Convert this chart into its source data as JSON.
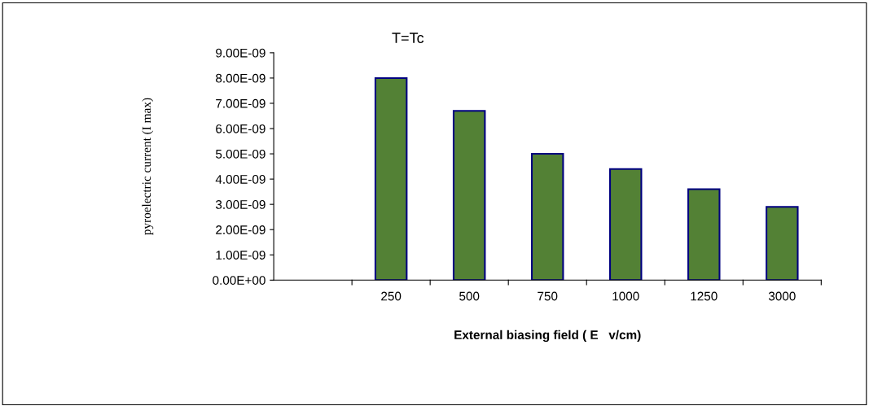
{
  "chart_data": {
    "type": "bar",
    "title": "T=Tc",
    "xlabel": "External biasing field ( E   v/cm)",
    "ylabel": "pyroelectric current (I max)",
    "categories": [
      null,
      "250",
      "500",
      "750",
      "1000",
      "1250",
      "3000"
    ],
    "values": [
      null,
      8e-09,
      6.7e-09,
      5e-09,
      4.4e-09,
      3.6e-09,
      2.9e-09
    ],
    "color": "#538135",
    "ylim": [
      0,
      9e-09
    ],
    "yticks": [
      {
        "value": 0,
        "label": "0.00E+00"
      },
      {
        "value": 1e-09,
        "label": "1.00E-09"
      },
      {
        "value": 2e-09,
        "label": "2.00E-09"
      },
      {
        "value": 3e-09,
        "label": "3.00E-09"
      },
      {
        "value": 4e-09,
        "label": "4.00E-09"
      },
      {
        "value": 5e-09,
        "label": "5.00E-09"
      },
      {
        "value": 6e-09,
        "label": "6.00E-09"
      },
      {
        "value": 7e-09,
        "label": "7.00E-09"
      },
      {
        "value": 8e-09,
        "label": "8.00E-09"
      },
      {
        "value": 9e-09,
        "label": "9.00E-09"
      }
    ],
    "grid": false,
    "legend": false
  }
}
